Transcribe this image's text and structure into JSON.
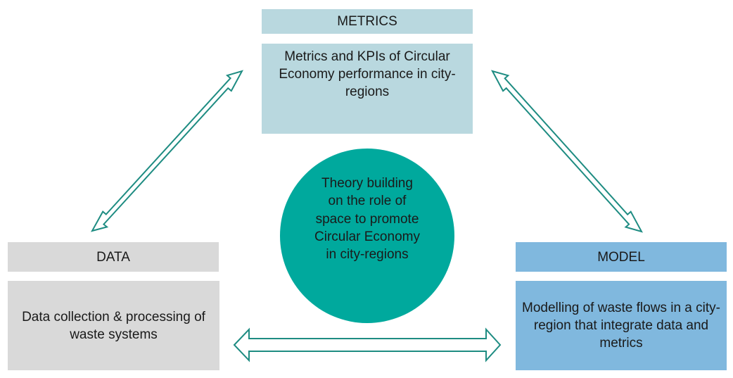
{
  "metrics": {
    "title": "METRICS",
    "body": "Metrics and KPIs of Circular Economy performance in city-regions"
  },
  "data": {
    "title": "DATA",
    "body": "Data collection & processing of waste systems"
  },
  "model": {
    "title": "MODEL",
    "body": "Modelling of waste flows in a city-region that integrate data and metrics"
  },
  "center": {
    "text": "Theory building on the role of space to promote Circular Economy in city-regions"
  },
  "colors": {
    "metrics": "#b9d8df",
    "data": "#d9d9d9",
    "model": "#80b8de",
    "circle": "#00a99d",
    "arrow_stroke": "#1e8c82"
  }
}
